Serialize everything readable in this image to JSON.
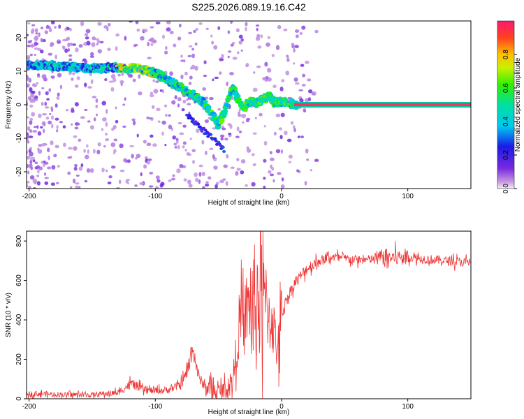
{
  "figure": {
    "title": "S225.2026.089.19.16.C42"
  },
  "chart_data": [
    {
      "type": "heatmap",
      "title": "S225.2026.089.19.16.C42",
      "xlabel": "Height of straight line (km)",
      "ylabel": "Frequency (Hz)",
      "xlim": [
        -202,
        150
      ],
      "ylim": [
        -25,
        25
      ],
      "xticks": [
        -200,
        -100,
        0,
        100
      ],
      "yticks": [
        -20,
        -10,
        0,
        10,
        20
      ],
      "colorbar": {
        "label": "Normalized spectral amplitude",
        "range": [
          0,
          1
        ],
        "ticks": [
          "0.0",
          "0.2",
          "0.4",
          "0.6",
          "0.8"
        ]
      },
      "ridge": {
        "description_points_x_km": [
          -195,
          -180,
          -160,
          -140,
          -130,
          -120,
          -110,
          -100,
          -90,
          -80,
          -70,
          -60,
          -55,
          -50,
          -45,
          -42,
          -38,
          -35,
          -30,
          -25,
          -20,
          -15,
          -10,
          -5,
          0,
          5,
          10,
          150
        ],
        "frequency_hz": [
          12,
          11.5,
          11,
          11,
          11,
          11,
          10.5,
          9.5,
          7.5,
          5,
          3,
          0,
          -3,
          -6,
          -2,
          3,
          5,
          2,
          -1,
          1,
          0.5,
          1.5,
          2.5,
          0.5,
          1,
          0.5,
          0,
          0
        ]
      },
      "strong_band_x_km": [
        10,
        150
      ],
      "strong_band_freq_hz": 0
    },
    {
      "type": "line",
      "xlabel": "Height of straight line (km)",
      "ylabel": "SNR (10 * v/v)",
      "xlim": [
        -202,
        150
      ],
      "ylim": [
        0,
        850
      ],
      "xticks": [
        -200,
        -100,
        0,
        100
      ],
      "yticks": [
        0,
        200,
        400,
        600,
        800
      ],
      "color": "#ee3333",
      "series": [
        {
          "name": "SNR",
          "x": [
            -202,
            -190,
            -170,
            -150,
            -130,
            -125,
            -120,
            -115,
            -110,
            -100,
            -90,
            -80,
            -75,
            -72,
            -70,
            -68,
            -65,
            -60,
            -55,
            -50,
            -45,
            -40,
            -37,
            -35,
            -33,
            -30,
            -28,
            -25,
            -22,
            -20,
            -18,
            -15,
            -12,
            -10,
            -8,
            -5,
            -2,
            0,
            5,
            10,
            15,
            20,
            30,
            40,
            50,
            60,
            70,
            80,
            90,
            100,
            110,
            120,
            130,
            140,
            150
          ],
          "y": [
            25,
            25,
            20,
            20,
            30,
            50,
            75,
            65,
            45,
            40,
            45,
            70,
            130,
            220,
            260,
            180,
            100,
            60,
            40,
            35,
            45,
            70,
            160,
            300,
            400,
            360,
            450,
            470,
            430,
            480,
            540,
            520,
            480,
            420,
            430,
            300,
            260,
            430,
            520,
            580,
            620,
            660,
            700,
            720,
            710,
            705,
            705,
            720,
            715,
            720,
            710,
            705,
            700,
            695,
            690
          ]
        }
      ]
    }
  ]
}
